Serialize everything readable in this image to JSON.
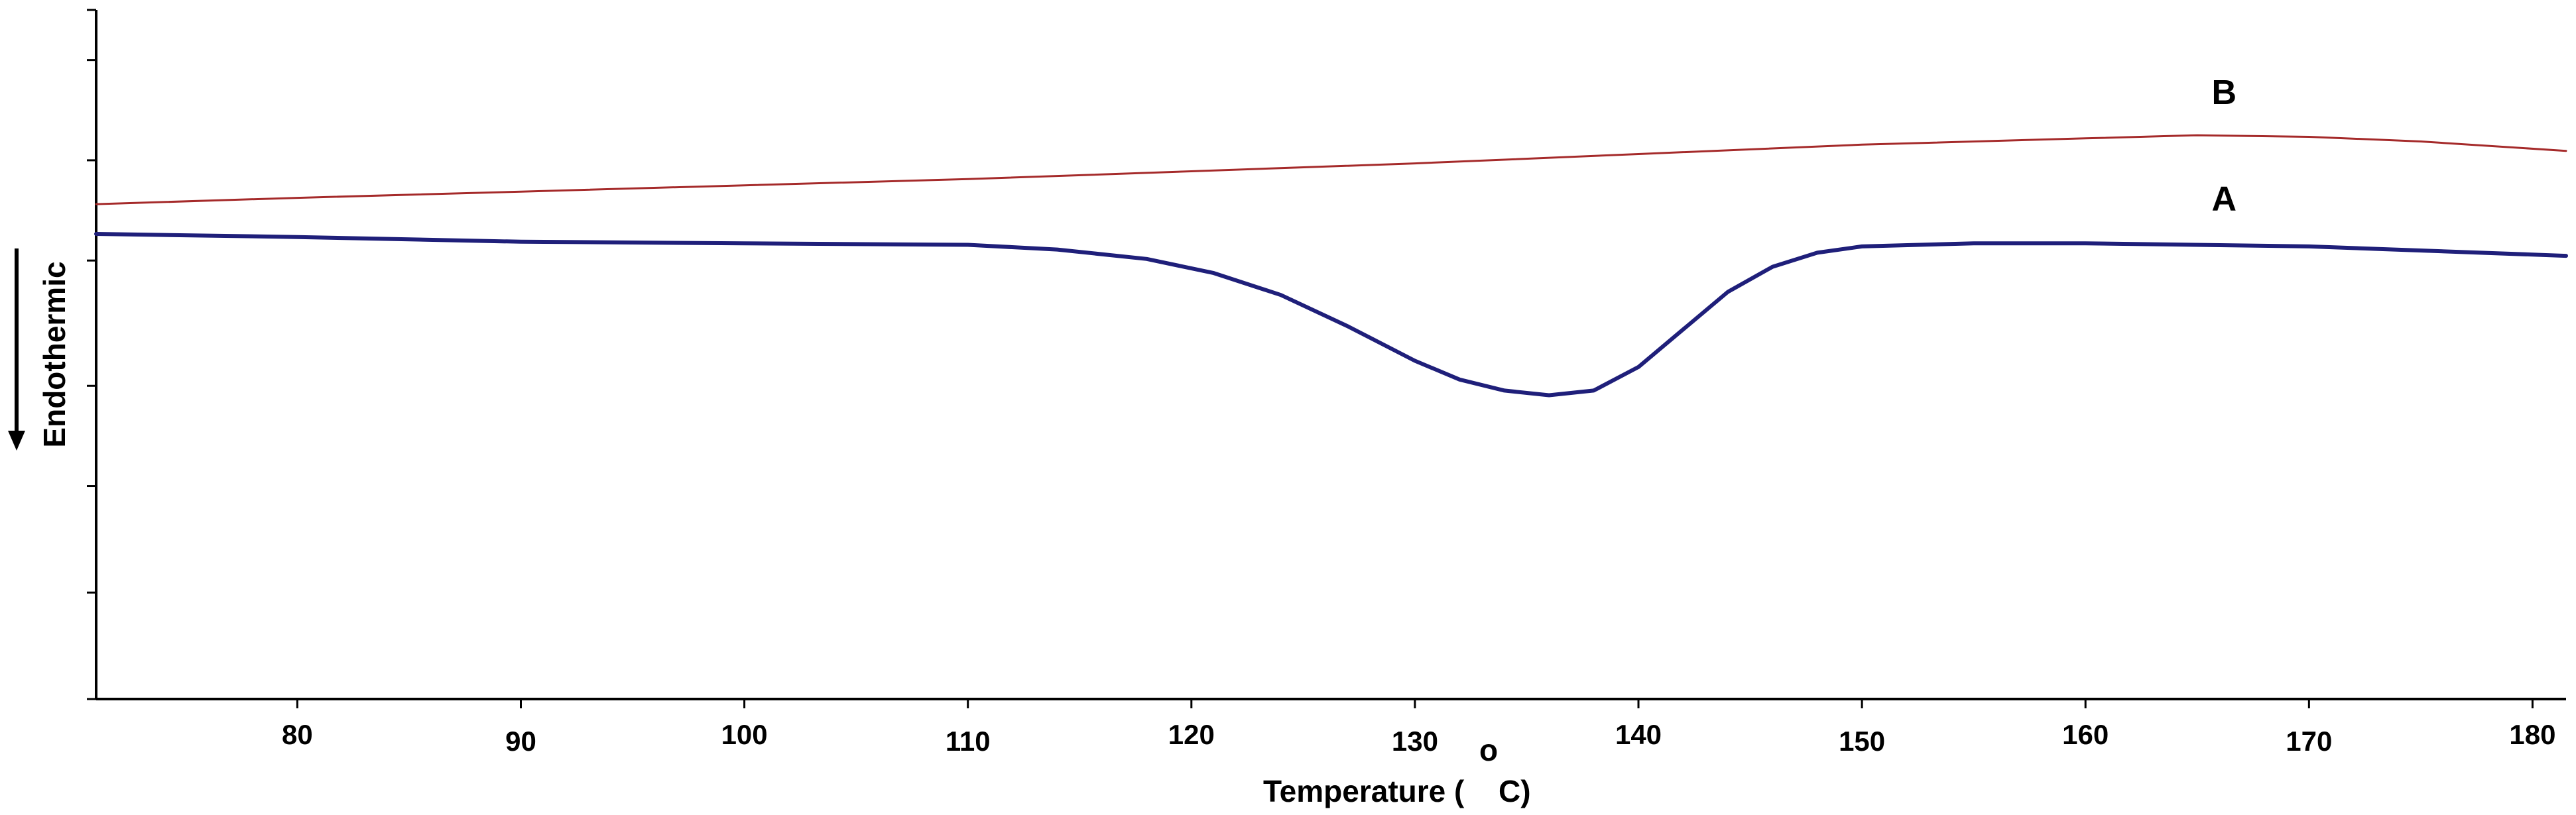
{
  "chart_data": {
    "type": "line",
    "title": "",
    "xlabel": "Temperature (",
    "xlabel_superscript": "o",
    "xlabel_unit": "C)",
    "ylabel": "Endothermic",
    "ylabel_arrow": "down",
    "xlim": [
      71,
      181.5
    ],
    "ylim": [
      -10,
      12
    ],
    "x_ticks": [
      80,
      90,
      100,
      110,
      120,
      130,
      140,
      150,
      160,
      170,
      180
    ],
    "y_ticks": [
      -10,
      -6.6,
      -3.2,
      0.0,
      4.0,
      7.2,
      10.4,
      12
    ],
    "y_tick_labels_shown": false,
    "grid": false,
    "series": [
      {
        "name": "B",
        "color": "#a52a2a",
        "x": [
          71,
          80,
          90,
          100,
          110,
          120,
          130,
          140,
          150,
          160,
          165,
          170,
          175,
          181.5
        ],
        "y": [
          5.8,
          6.0,
          6.2,
          6.4,
          6.6,
          6.85,
          7.1,
          7.4,
          7.7,
          7.9,
          8.0,
          7.95,
          7.8,
          7.5
        ]
      },
      {
        "name": "A",
        "color": "#1f1f7a",
        "x": [
          71,
          80,
          90,
          100,
          110,
          114,
          118,
          121,
          124,
          127,
          130,
          132,
          134,
          136,
          138,
          140,
          142,
          144,
          146,
          148,
          150,
          155,
          160,
          170,
          181.5
        ],
        "y": [
          4.85,
          4.75,
          4.6,
          4.55,
          4.5,
          4.35,
          4.05,
          3.6,
          2.9,
          1.9,
          0.8,
          0.2,
          -0.15,
          -0.3,
          -0.15,
          0.6,
          1.8,
          3.0,
          3.8,
          4.25,
          4.45,
          4.55,
          4.55,
          4.45,
          4.15
        ]
      }
    ]
  }
}
